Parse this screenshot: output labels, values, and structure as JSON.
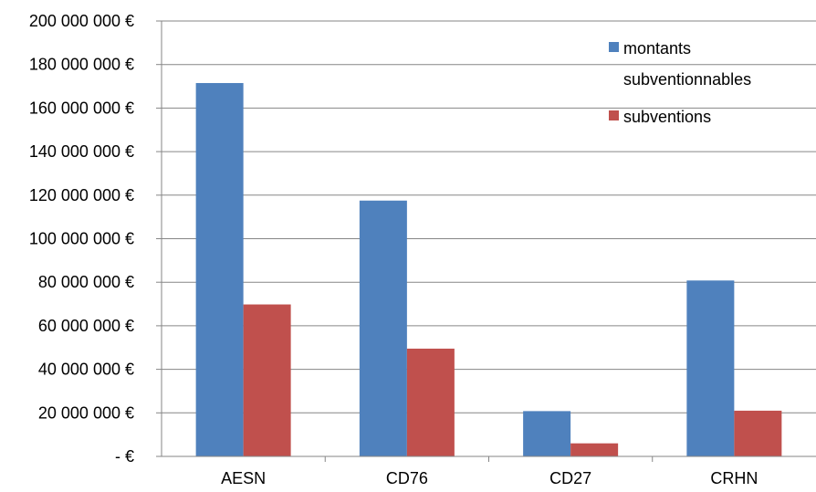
{
  "chart_data": {
    "type": "bar",
    "title": "",
    "xlabel": "",
    "ylabel": "",
    "categories": [
      "AESN",
      "CD76",
      "CD27",
      "CRHN"
    ],
    "series": [
      {
        "name": "montants subventionnables",
        "color": "#4F81BD",
        "values": [
          171500000,
          117500000,
          20800000,
          80800000
        ]
      },
      {
        "name": "subventions",
        "color": "#C0504D",
        "values": [
          69800000,
          49500000,
          6000000,
          21000000
        ]
      }
    ],
    "ylim": [
      0,
      200000000
    ],
    "ytick_labels": [
      "-  €",
      "20 000 000 €",
      "40 000 000 €",
      "60 000 000 €",
      "80 000 000 €",
      "100 000 000 €",
      "120 000 000 €",
      "140 000 000 €",
      "160 000 000 €",
      "180 000 000 €",
      "200 000 000 €"
    ],
    "legend": {
      "position": "top-right",
      "entries": [
        {
          "lines": [
            "montants",
            "subventionnables"
          ]
        },
        {
          "lines": [
            "subventions"
          ]
        }
      ]
    },
    "grid": true,
    "colors": {
      "gridline": "#868686",
      "axis": "#868686"
    }
  }
}
